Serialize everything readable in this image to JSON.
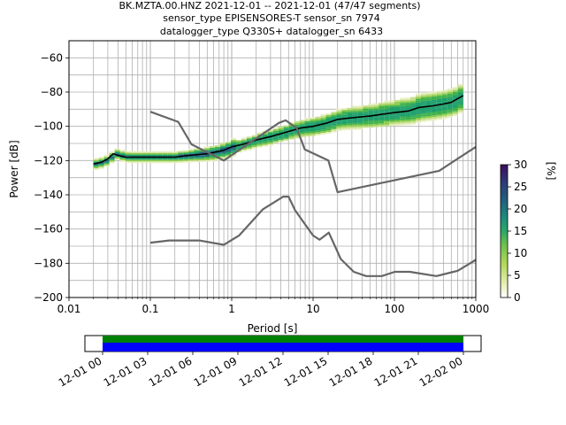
{
  "title": {
    "line1": "BK.MZTA.00.HNZ   2021-12-01 -- 2021-12-01  (47/47 segments)",
    "line2": "sensor_type EPISENSORES-T sensor_sn 7974",
    "line3": "datalogger_type Q330S+ datalogger_sn 6433"
  },
  "chart_data": {
    "type": "heatmap",
    "xlabel": "Period [s]",
    "ylabel": "Power [dB]",
    "xscale": "log",
    "xlim": [
      0.01,
      1000
    ],
    "ylim": [
      -200,
      -50
    ],
    "grid": true,
    "x_ticks": [
      {
        "value": 0.01,
        "label": "0.01"
      },
      {
        "value": 0.1,
        "label": "0.1"
      },
      {
        "value": 1,
        "label": "1"
      },
      {
        "value": 10,
        "label": "10"
      },
      {
        "value": 100,
        "label": "100"
      },
      {
        "value": 1000,
        "label": "1000"
      }
    ],
    "y_ticks": [
      {
        "value": -60,
        "label": "−60"
      },
      {
        "value": -80,
        "label": "−80"
      },
      {
        "value": -100,
        "label": "−100"
      },
      {
        "value": -120,
        "label": "−120"
      },
      {
        "value": -140,
        "label": "−140"
      },
      {
        "value": -160,
        "label": "−160"
      },
      {
        "value": -180,
        "label": "−180"
      },
      {
        "value": -200,
        "label": "−200"
      }
    ],
    "series": [
      {
        "role": "mode",
        "color": "#000000",
        "x": [
          0.02,
          0.025,
          0.03,
          0.035,
          0.04,
          0.05,
          0.07,
          0.1,
          0.2,
          0.3,
          0.5,
          0.8,
          1,
          1.5,
          2,
          3,
          5,
          7,
          10,
          15,
          20,
          30,
          50,
          70,
          100,
          150,
          200,
          300,
          400,
          500,
          700
        ],
        "y": [
          -122,
          -121,
          -119,
          -116,
          -117,
          -118,
          -118,
          -118,
          -118,
          -117,
          -116,
          -114,
          -112,
          -110,
          -108,
          -106,
          -103,
          -101,
          -100,
          -98,
          -96,
          -95,
          -94,
          -93,
          -92,
          -91,
          -89,
          -88,
          -87,
          -86,
          -82
        ]
      },
      {
        "role": "low-noise-model",
        "color": "#666666",
        "x": [
          0.1,
          0.17,
          0.4,
          0.8,
          1.24,
          2.4,
          4.3,
          5,
          6,
          10,
          12,
          15.6,
          21.9,
          31.6,
          45,
          70,
          101,
          154,
          328,
          600,
          1000
        ],
        "y": [
          -168,
          -166.7,
          -166.7,
          -169.2,
          -163.7,
          -148.6,
          -141.1,
          -141.1,
          -149,
          -163.8,
          -166.2,
          -162.1,
          -177.5,
          -185,
          -187.5,
          -187.5,
          -185,
          -185,
          -187.5,
          -184.4,
          -178
        ]
      },
      {
        "role": "high-noise-model",
        "color": "#666666",
        "x": [
          0.1,
          0.22,
          0.32,
          0.8,
          3.8,
          4.6,
          6.3,
          7.9,
          15.4,
          20,
          354.8,
          1000
        ],
        "y": [
          -91.5,
          -97.4,
          -110.5,
          -120,
          -98,
          -96.5,
          -101,
          -113.5,
          -120,
          -138.5,
          -126,
          -112
        ]
      }
    ],
    "colorbar": {
      "label": "[%]",
      "min": 0,
      "max": 30,
      "ticks": [
        "0",
        "5",
        "10",
        "15",
        "20",
        "25",
        "30"
      ]
    },
    "time_axis": {
      "tick_labels": [
        "12-01 00",
        "12-01 03",
        "12-01 06",
        "12-01 09",
        "12-01 12",
        "12-01 15",
        "12-01 18",
        "12-01 21",
        "12-02 00"
      ],
      "coverage_colors": [
        "#008000",
        "#0000ff"
      ]
    }
  }
}
